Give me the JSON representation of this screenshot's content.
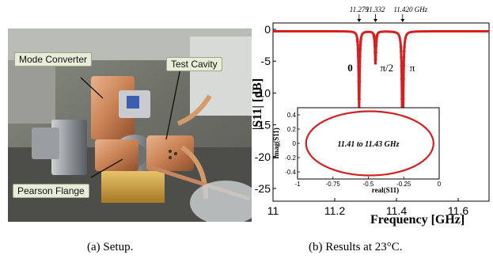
{
  "panel_a": {
    "labels": {
      "mode_converter": "Mode Converter",
      "test_cavity": "Test Cavity",
      "pearson_flange": "Pearson Flange"
    },
    "caption": "(a) Setup."
  },
  "panel_b": {
    "caption": "(b) Results at 23°C."
  },
  "chart_data": [
    {
      "type": "line",
      "title": "",
      "xlabel": "Frequency   [GHz]",
      "ylabel": "|S11|  [dB]",
      "xlim": [
        11,
        11.7
      ],
      "ylim": [
        -27,
        1
      ],
      "x_ticks": [
        11,
        11.2,
        11.4,
        11.6
      ],
      "x_tick_labels": [
        "11",
        "11.2",
        "11.4",
        "11.6"
      ],
      "y_ticks": [
        0,
        -5,
        -10,
        -15,
        -20,
        -25
      ],
      "y_tick_labels": [
        "0",
        "-5",
        "-10",
        "-15",
        "-20",
        "-25"
      ],
      "grid": false,
      "series_color": "#d42020",
      "resonances": [
        {
          "x": 11.279,
          "min_db": -12,
          "width": 0.006,
          "label": "11.279",
          "mode": "0"
        },
        {
          "x": 11.332,
          "min_db": -5,
          "width": 0.006,
          "label": "11.332",
          "mode": "π/2"
        },
        {
          "x": 11.42,
          "min_db": -23,
          "width": 0.006,
          "label": "11.420 GHz",
          "mode": "π"
        }
      ]
    },
    {
      "type": "scatter",
      "title": "",
      "xlabel": "real(S11)",
      "ylabel": "Imag(S11)",
      "xlim": [
        -1,
        0
      ],
      "ylim": [
        -0.5,
        0.5
      ],
      "x_ticks": [
        -1,
        -0.75,
        -0.5,
        -0.25,
        0
      ],
      "x_tick_labels": [
        "-1",
        "-0.75",
        "-0.5",
        "-0.25",
        "0"
      ],
      "y_ticks": [
        0.4,
        0.2,
        0,
        -0.2,
        -0.4
      ],
      "y_tick_labels": [
        "0.4",
        "0.2",
        "0",
        "-0.2",
        "-0.4"
      ],
      "annotation": "11.41 to 11.43 GHz",
      "circle": {
        "center_re": -0.49,
        "center_im": 0.0,
        "radius": 0.45
      },
      "series_color": "#d42020"
    }
  ]
}
